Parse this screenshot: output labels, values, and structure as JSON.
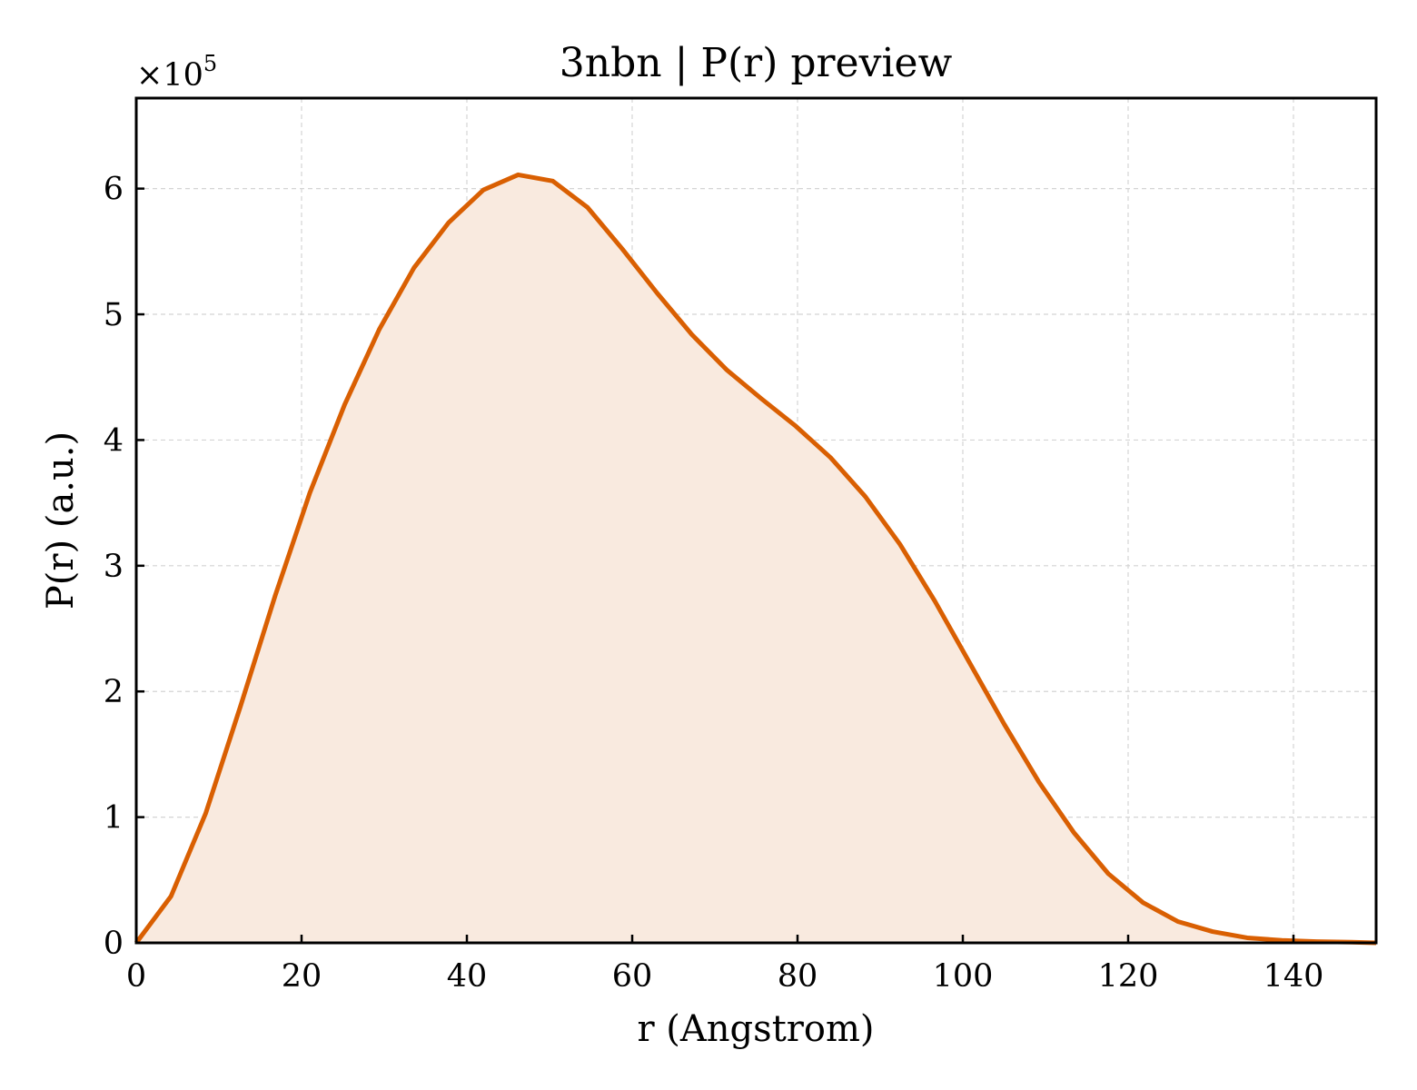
{
  "chart_data": {
    "type": "area",
    "title": "3nbn | P(r) preview",
    "xlabel": "r (Angstrom)",
    "ylabel": "P(r) (a.u.)",
    "y_multiplier": "×10",
    "y_multiplier_exp": "5",
    "xlim": [
      0,
      150
    ],
    "ylim": [
      0,
      6.72
    ],
    "xticks": [
      0,
      20,
      40,
      60,
      80,
      100,
      120,
      140
    ],
    "yticks": [
      0,
      1,
      2,
      3,
      4,
      5,
      6
    ],
    "grid": true,
    "line_color": "#d95f02",
    "fill_color": "#f9eadf",
    "x": [
      0,
      4.2,
      8.4,
      12.6,
      16.8,
      21.0,
      25.2,
      29.4,
      33.6,
      37.8,
      42.0,
      46.2,
      50.4,
      54.6,
      58.8,
      63.0,
      67.2,
      71.4,
      75.6,
      79.8,
      84.0,
      88.2,
      92.4,
      96.6,
      100.8,
      105.0,
      109.2,
      113.4,
      117.6,
      121.8,
      126.0,
      130.2,
      134.4,
      138.6,
      142.8,
      147.0,
      150.0
    ],
    "y": [
      0,
      0.37,
      1.03,
      1.88,
      2.76,
      3.58,
      4.28,
      4.88,
      5.37,
      5.73,
      5.99,
      6.11,
      6.06,
      5.85,
      5.52,
      5.17,
      4.84,
      4.56,
      4.33,
      4.11,
      3.86,
      3.55,
      3.17,
      2.72,
      2.23,
      1.74,
      1.28,
      0.88,
      0.55,
      0.32,
      0.17,
      0.09,
      0.04,
      0.02,
      0.01,
      0.005,
      0.0
    ]
  }
}
